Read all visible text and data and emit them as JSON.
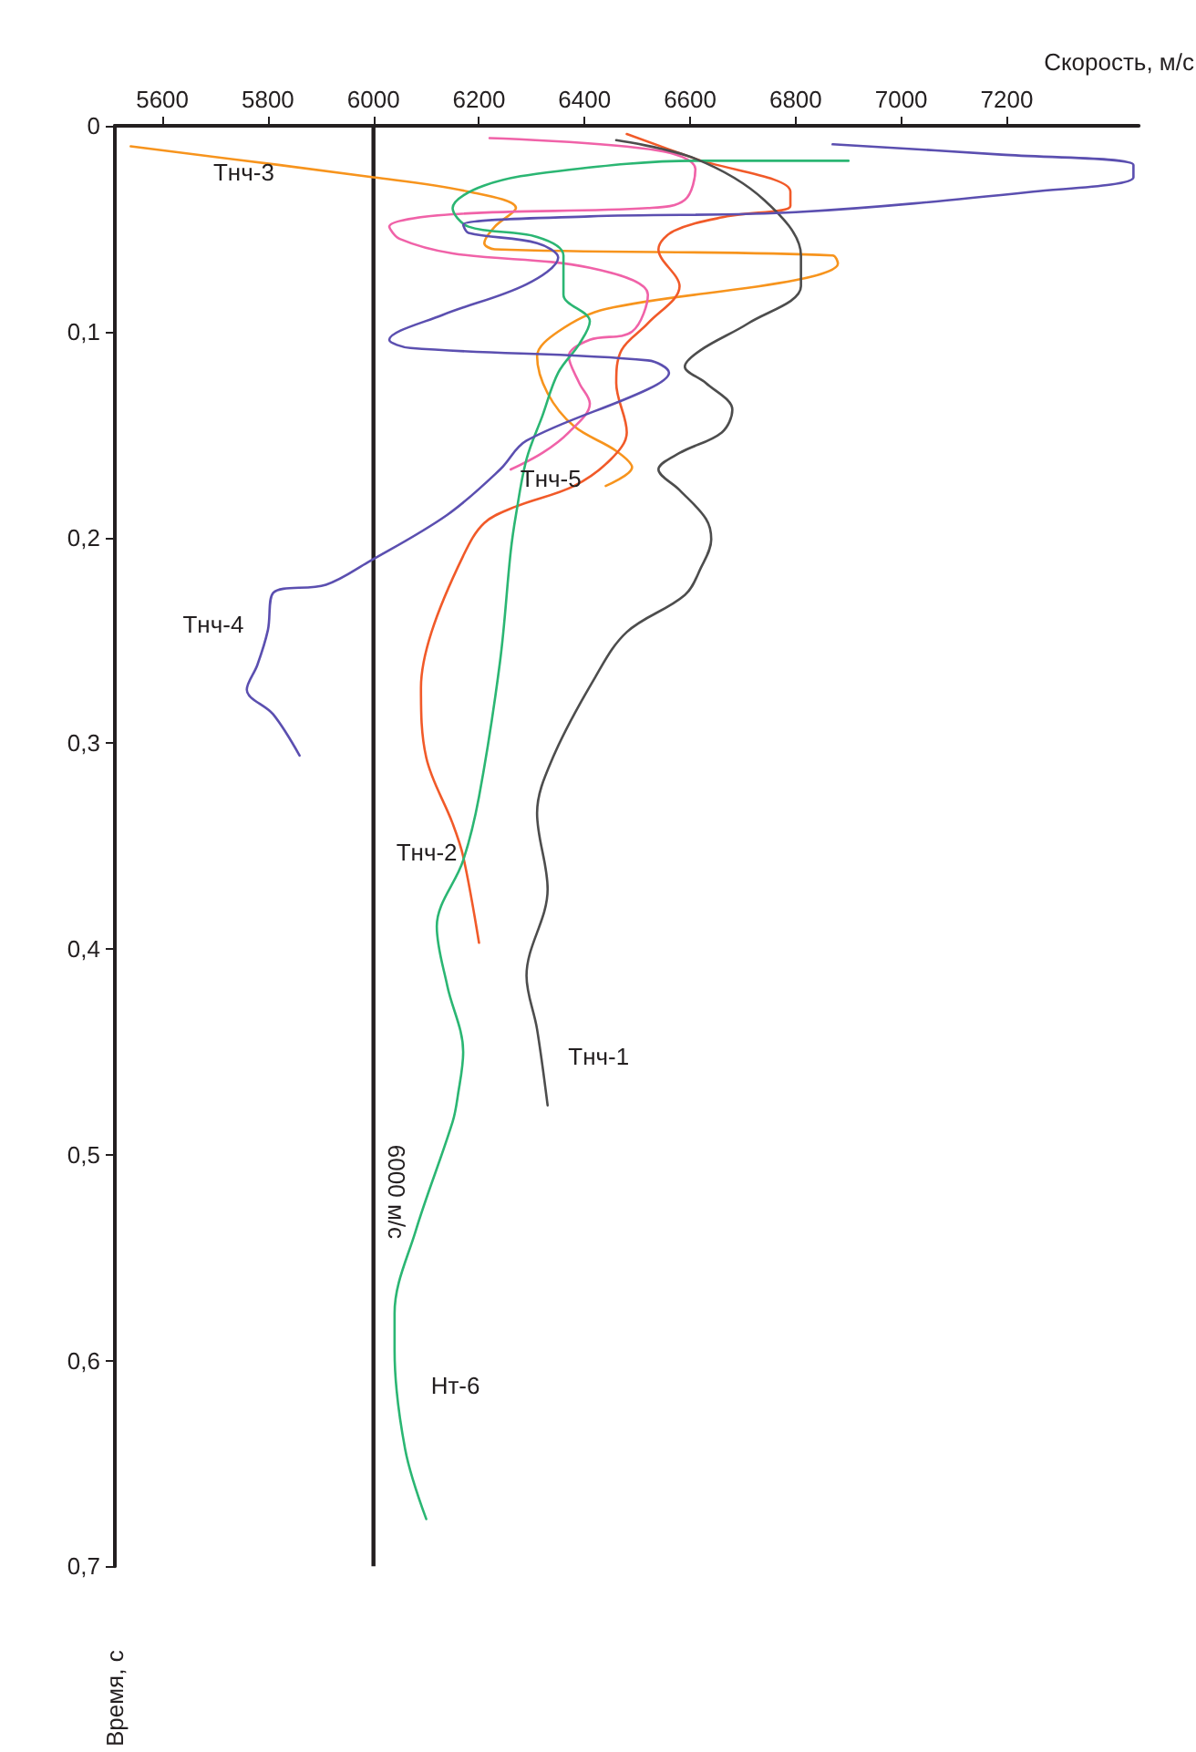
{
  "chart_data": {
    "type": "line",
    "xlabel": "Скорость, м/с",
    "ylabel": "Время, с",
    "xlim": [
      5510,
      7450
    ],
    "xticks": [
      5600,
      5800,
      6000,
      6200,
      6400,
      6600,
      6800,
      7000,
      7200
    ],
    "ylim": [
      0.7,
      0
    ],
    "yticks": [
      0,
      {
        "value": 0.1,
        "label": "0,1"
      },
      {
        "value": 0.2,
        "label": "0,2"
      },
      {
        "value": 0.3,
        "label": "0,3"
      },
      {
        "value": 0.4,
        "label": "0,4"
      },
      {
        "value": 0.5,
        "label": "0,5"
      },
      {
        "value": 0.6,
        "label": "0,6"
      },
      {
        "value": 0.7,
        "label": "0,7"
      }
    ],
    "grid": false,
    "marker": "none",
    "line_style": "solid",
    "ref_lines": [
      {
        "axis": "x",
        "value": 6000,
        "label": "6000 м/с",
        "color": "#231f20"
      }
    ],
    "series": [
      {
        "name": "Тнч-3",
        "color": "#f7941d",
        "x": [
          5540,
          6000,
          6180,
          6270,
          6230,
          6210,
          6230,
          6870,
          6880,
          6800,
          6440,
          6350,
          6310,
          6330,
          6380,
          6460,
          6490,
          6440
        ],
        "values": [
          0.01,
          0.025,
          0.032,
          0.04,
          0.049,
          0.057,
          0.06,
          0.063,
          0.067,
          0.075,
          0.089,
          0.1,
          0.112,
          0.13,
          0.146,
          0.158,
          0.166,
          0.175
        ]
      },
      {
        "name": "Тнч-5",
        "color": "#f062a8",
        "x": [
          6220,
          6540,
          6610,
          6590,
          6520,
          6150,
          6030,
          6050,
          6150,
          6410,
          6520,
          6490,
          6410,
          6370,
          6390,
          6410,
          6370,
          6320,
          6260
        ],
        "values": [
          0.006,
          0.012,
          0.021,
          0.036,
          0.04,
          0.043,
          0.049,
          0.055,
          0.062,
          0.069,
          0.082,
          0.1,
          0.104,
          0.112,
          0.125,
          0.135,
          0.149,
          0.159,
          0.167
        ]
      },
      {
        "name": "Тнч-2",
        "color": "#f15a29",
        "x": [
          6480,
          6610,
          6790,
          6790,
          6670,
          6570,
          6540,
          6580,
          6520,
          6470,
          6460,
          6480,
          6450,
          6380,
          6270,
          6210,
          6170,
          6110,
          6090,
          6100,
          6150,
          6170,
          6200
        ],
        "values": [
          0.004,
          0.016,
          0.032,
          0.039,
          0.044,
          0.051,
          0.06,
          0.078,
          0.096,
          0.109,
          0.125,
          0.149,
          0.162,
          0.175,
          0.185,
          0.193,
          0.209,
          0.246,
          0.273,
          0.307,
          0.339,
          0.355,
          0.397
        ]
      },
      {
        "name": "Нт-6",
        "color": "#2bb673",
        "x": [
          6900,
          6610,
          6350,
          6210,
          6150,
          6180,
          6310,
          6360,
          6360,
          6410,
          6390,
          6350,
          6320,
          6290,
          6270,
          6260,
          6240,
          6200,
          6170,
          6120,
          6140,
          6170,
          6160,
          6150,
          6080,
          6040,
          6040,
          6060,
          6100
        ],
        "values": [
          0.017,
          0.017,
          0.022,
          0.029,
          0.04,
          0.049,
          0.054,
          0.063,
          0.082,
          0.095,
          0.106,
          0.12,
          0.141,
          0.162,
          0.189,
          0.207,
          0.26,
          0.326,
          0.357,
          0.389,
          0.418,
          0.45,
          0.471,
          0.484,
          0.537,
          0.577,
          0.595,
          0.643,
          0.677
        ]
      },
      {
        "name": "Тнч-1",
        "color": "#4d4d4d",
        "x": [
          6460,
          6610,
          6740,
          6810,
          6810,
          6710,
          6620,
          6590,
          6630,
          6680,
          6660,
          6580,
          6540,
          6580,
          6630,
          6640,
          6620,
          6590,
          6480,
          6420,
          6340,
          6310,
          6330,
          6290,
          6310,
          6330
        ],
        "values": [
          0.007,
          0.016,
          0.036,
          0.063,
          0.078,
          0.096,
          0.109,
          0.117,
          0.125,
          0.138,
          0.149,
          0.159,
          0.167,
          0.177,
          0.191,
          0.201,
          0.215,
          0.228,
          0.246,
          0.268,
          0.307,
          0.334,
          0.371,
          0.413,
          0.439,
          0.476
        ]
      },
      {
        "name": "Тнч-4",
        "color": "#5b4fb0",
        "x": [
          6870,
          7190,
          7440,
          7440,
          7250,
          6800,
          6410,
          6170,
          6180,
          6310,
          6350,
          6290,
          6130,
          6030,
          6070,
          6520,
          6560,
          6520,
          6290,
          6240,
          6140,
          5990,
          5910,
          5810,
          5800,
          5780,
          5760,
          5810,
          5860
        ],
        "values": [
          0.009,
          0.014,
          0.019,
          0.025,
          0.032,
          0.042,
          0.044,
          0.048,
          0.052,
          0.057,
          0.064,
          0.077,
          0.092,
          0.104,
          0.108,
          0.114,
          0.12,
          0.128,
          0.153,
          0.167,
          0.189,
          0.212,
          0.223,
          0.227,
          0.245,
          0.262,
          0.274,
          0.286,
          0.306
        ]
      }
    ]
  }
}
